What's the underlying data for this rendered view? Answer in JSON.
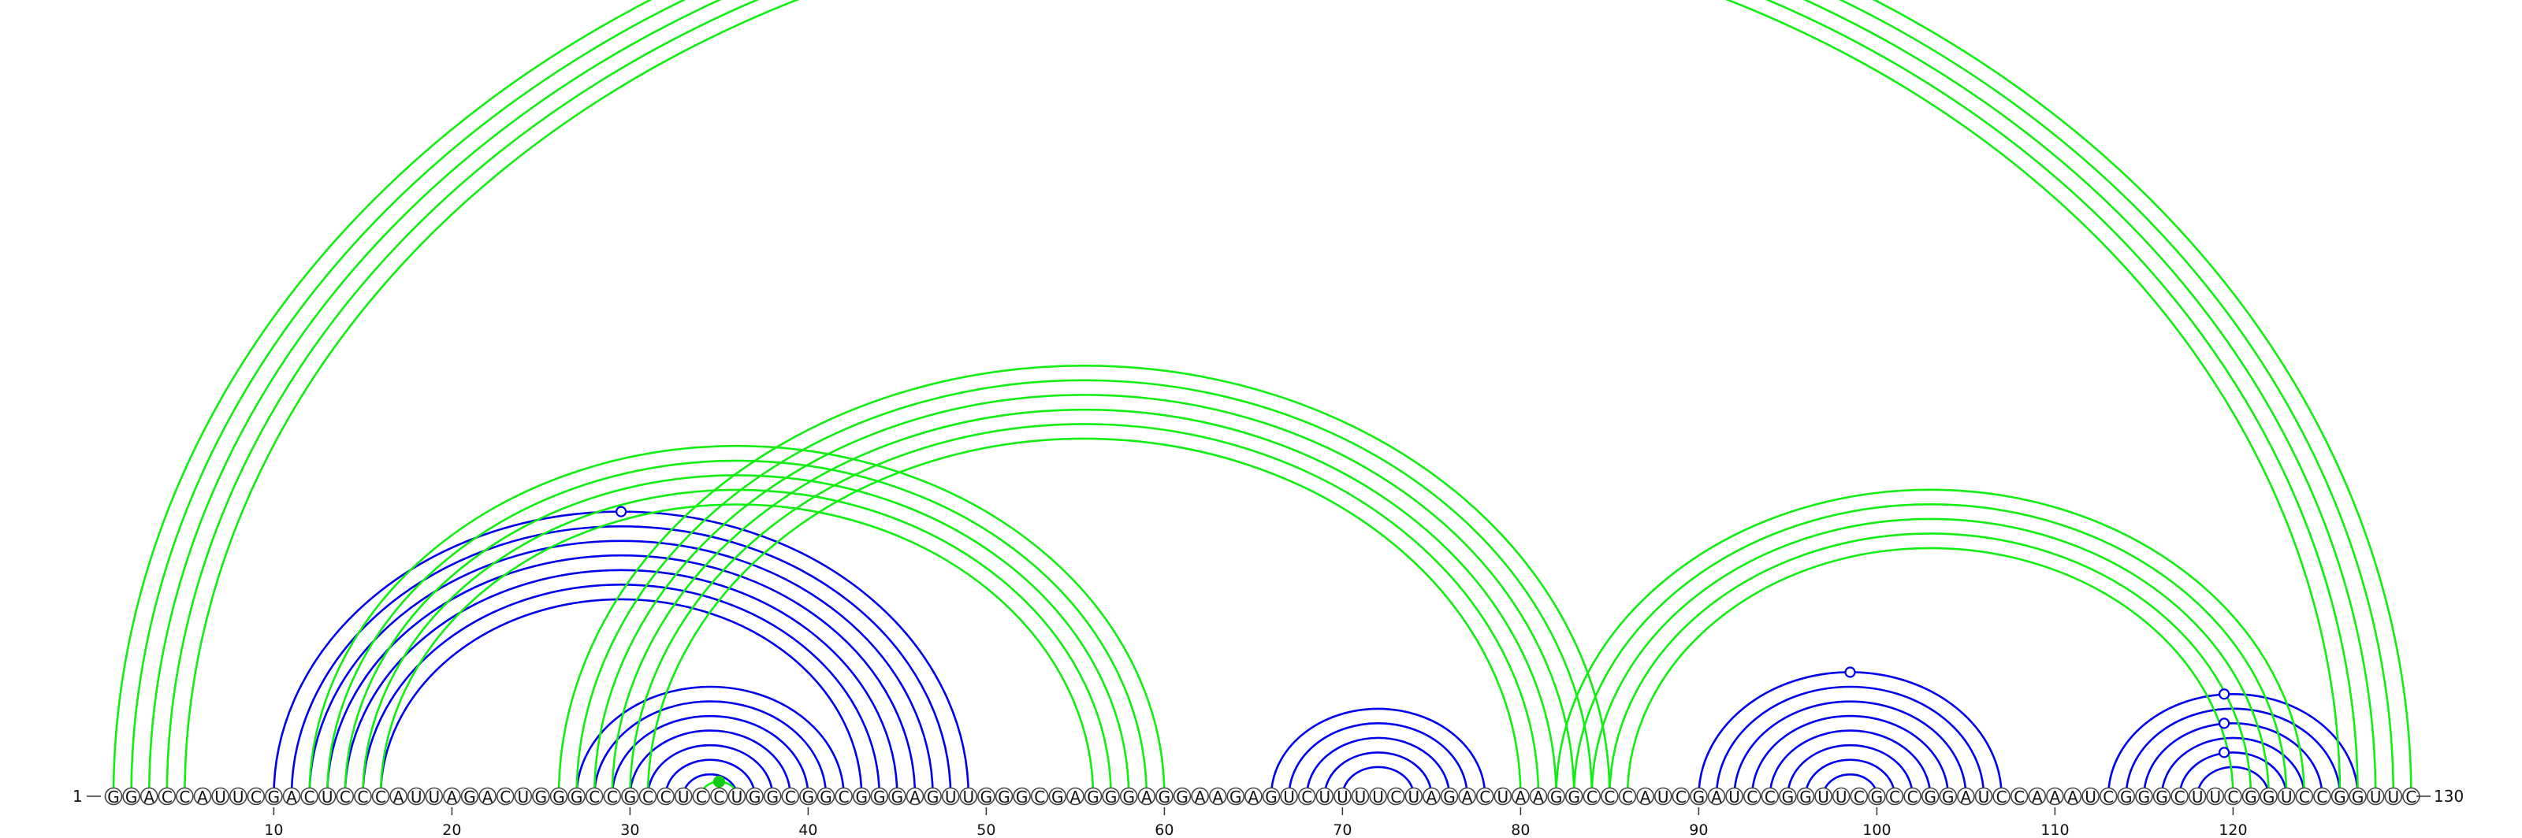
{
  "sequence": "GGACCAUUCGACUCCCAUUAGACUGGGCCGCCUCCUGGCGGCGGGAGUUGGGCGAGGGAGGAAGAGUCUUUUCUAGACUAAGGCCCAUCGAUCCGGUUCGCCGGAUCCAAAUCGGGCUUCGGUCCGGUUC",
  "start_label": "1",
  "end_label": "130",
  "ticks": [
    "10",
    "20",
    "30",
    "40",
    "50",
    "60",
    "70",
    "80",
    "90",
    "100",
    "110",
    "120"
  ],
  "colors": {
    "structure_a": "#0000ee",
    "structure_b": "#11ee11",
    "marker_b": "#11cc11"
  },
  "pairs_blue": [
    [
      10,
      49
    ],
    [
      11,
      48
    ],
    [
      12,
      47
    ],
    [
      13,
      46
    ],
    [
      14,
      45
    ],
    [
      15,
      44
    ],
    [
      16,
      43
    ],
    [
      27,
      42
    ],
    [
      28,
      41
    ],
    [
      29,
      40
    ],
    [
      30,
      39
    ],
    [
      31,
      38
    ],
    [
      32,
      37
    ],
    [
      33,
      36
    ],
    [
      66,
      78
    ],
    [
      67,
      77
    ],
    [
      68,
      76
    ],
    [
      69,
      75
    ],
    [
      70,
      74
    ],
    [
      90,
      107
    ],
    [
      91,
      106
    ],
    [
      92,
      105
    ],
    [
      93,
      104
    ],
    [
      94,
      103
    ],
    [
      95,
      102
    ],
    [
      96,
      101
    ],
    [
      97,
      100
    ],
    [
      113,
      127
    ],
    [
      114,
      126
    ],
    [
      115,
      125
    ],
    [
      116,
      124
    ],
    [
      117,
      123
    ],
    [
      118,
      122
    ]
  ],
  "pairs_green": [
    [
      1,
      130
    ],
    [
      2,
      129
    ],
    [
      3,
      128
    ],
    [
      4,
      127
    ],
    [
      5,
      126
    ],
    [
      12,
      60
    ],
    [
      13,
      59
    ],
    [
      14,
      58
    ],
    [
      15,
      57
    ],
    [
      16,
      56
    ],
    [
      26,
      85
    ],
    [
      27,
      84
    ],
    [
      28,
      83
    ],
    [
      29,
      82
    ],
    [
      30,
      81
    ],
    [
      31,
      80
    ],
    [
      34,
      36
    ],
    [
      82,
      124
    ],
    [
      83,
      123
    ],
    [
      84,
      122
    ],
    [
      85,
      121
    ],
    [
      86,
      120
    ]
  ],
  "markers_blue": [
    [
      29.5,
      "open"
    ],
    [
      98.5,
      "open"
    ],
    [
      119.5,
      "open"
    ],
    [
      119.5,
      "open"
    ],
    [
      119.5,
      "open"
    ]
  ],
  "markers_green": [
    [
      35,
      "filled"
    ]
  ]
}
